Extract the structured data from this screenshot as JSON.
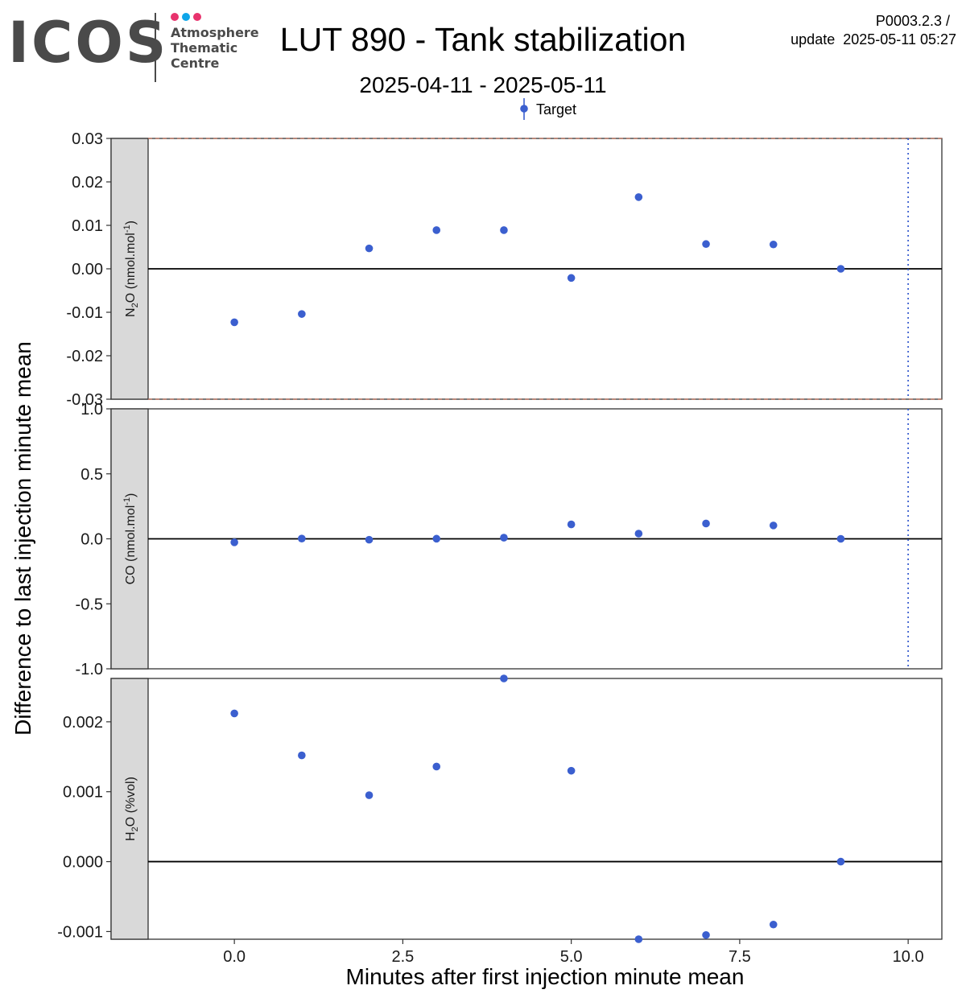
{
  "header": {
    "logo": {
      "wordmark": "ICOS",
      "line1": "Atmosphere",
      "line2": "Thematic",
      "line3": "Centre",
      "dot_colors": [
        "#e8336d",
        "#0ea5e9",
        "#e8336d"
      ],
      "text_color": "#4a4a4a"
    },
    "title": "LUT 890 - Tank stabilization",
    "subtitle": "2025-04-11 - 2025-05-11",
    "version": "P0003.2.3 /",
    "update": "update  2025-05-11 05:27"
  },
  "chart_data": {
    "type": "scatter",
    "xlabel": "Minutes after first injection minute mean",
    "ylabel": "Difference to last injection minute mean",
    "xlim": [
      -1.28,
      10.5
    ],
    "x_ticks": [
      "0.0",
      "2.5",
      "5.0",
      "7.5",
      "10.0"
    ],
    "x_tick_values": [
      0,
      2.5,
      5,
      7.5,
      10
    ],
    "vline_x": 10,
    "colors": {
      "point": "#3b5fcf",
      "strip": "#d9d9d9",
      "zero_line": "#000000",
      "vline": "#3b5fcf",
      "dashed": "#b5654f"
    },
    "legend": {
      "label": "Target",
      "position": "top"
    },
    "x": [
      0,
      1,
      2,
      3,
      4,
      5,
      6,
      7,
      8,
      9
    ],
    "panels": [
      {
        "strip_label": "N2O (nmol.mol-1)",
        "strip_main": "N",
        "strip_sub": "2",
        "strip_mid": "O (nmol.mol",
        "strip_sup": "-1",
        "strip_end": ")",
        "ylim": [
          -0.03,
          0.03
        ],
        "y_ticks": [
          "0.03",
          "0.02",
          "0.01",
          "0.00",
          "-0.01",
          "-0.02",
          "-0.03"
        ],
        "y_tick_values": [
          0.03,
          0.02,
          0.01,
          0,
          -0.01,
          -0.02,
          -0.03
        ],
        "dashed_limits": [
          0.03,
          -0.03
        ],
        "values": [
          -0.0123,
          -0.0104,
          0.0047,
          0.0089,
          0.0089,
          -0.0021,
          0.0165,
          0.0057,
          0.0056,
          0.0
        ]
      },
      {
        "strip_label": "CO (nmol.mol-1)",
        "strip_main": "CO (nmol.mol",
        "strip_sub": "",
        "strip_mid": "",
        "strip_sup": "-1",
        "strip_end": ")",
        "ylim": [
          -1.0,
          1.0
        ],
        "y_ticks": [
          "1.0",
          "0.5",
          "0.0",
          "-0.5",
          "-1.0"
        ],
        "y_tick_values": [
          1,
          0.5,
          0,
          -0.5,
          -1
        ],
        "dashed_limits": [],
        "values": [
          -0.027,
          0.002,
          -0.007,
          0.001,
          0.009,
          0.111,
          0.04,
          0.118,
          0.103,
          0.0
        ]
      },
      {
        "strip_label": "H2O (%vol)",
        "strip_main": "H",
        "strip_sub": "2",
        "strip_mid": "O (%vol)",
        "strip_sup": "",
        "strip_end": "",
        "ylim": [
          -0.00111,
          0.00262
        ],
        "y_ticks": [
          "0.002",
          "0.001",
          "0.000",
          "-0.001"
        ],
        "y_tick_values": [
          0.002,
          0.001,
          0,
          -0.001
        ],
        "dashed_limits": [],
        "values": [
          0.00212,
          0.00152,
          0.00095,
          0.00136,
          0.00262,
          0.0013,
          -0.00111,
          -0.00105,
          -0.0009,
          0.0
        ]
      }
    ]
  }
}
